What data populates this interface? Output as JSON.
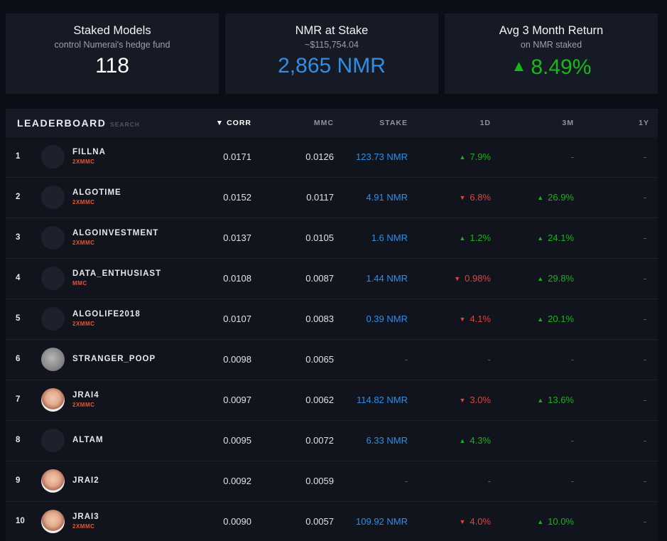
{
  "cards": [
    {
      "title": "Staked Models",
      "subtitle": "control Numerai's hedge fund",
      "value": "118",
      "color": "#ffffff"
    },
    {
      "title": "NMR at Stake",
      "subtitle": "~$115,754.04",
      "value": "2,865 NMR",
      "color": "#2f8ee8"
    },
    {
      "title": "Avg 3 Month Return",
      "subtitle": "on NMR staked",
      "value": "8.49%",
      "arrow": "▲",
      "color": "#18b818"
    }
  ],
  "leaderboard": {
    "title": "LEADERBOARD",
    "search_placeholder": "SEARCH",
    "columns": {
      "corr": "▼ CORR",
      "mmc": "MMC",
      "stake": "STAKE",
      "d1": "1D",
      "m3": "3M",
      "y1": "1Y"
    },
    "rows": [
      {
        "rank": "1",
        "name": "FILLNA",
        "tag": "2XMMC",
        "avatar": "dark",
        "corr": "0.0171",
        "mmc": "0.0126",
        "stake": "123.73 NMR",
        "d1": "7.9%",
        "d1_dir": "up",
        "m3": "-",
        "m3_dir": "none",
        "y1": "-"
      },
      {
        "rank": "2",
        "name": "ALGOTIME",
        "tag": "2XMMC",
        "avatar": "dark",
        "corr": "0.0152",
        "mmc": "0.0117",
        "stake": "4.91 NMR",
        "d1": "6.8%",
        "d1_dir": "down",
        "m3": "26.9%",
        "m3_dir": "up",
        "y1": "-"
      },
      {
        "rank": "3",
        "name": "ALGOINVESTMENT",
        "tag": "2XMMC",
        "avatar": "dark",
        "corr": "0.0137",
        "mmc": "0.0105",
        "stake": "1.6 NMR",
        "d1": "1.2%",
        "d1_dir": "up",
        "m3": "24.1%",
        "m3_dir": "up",
        "y1": "-"
      },
      {
        "rank": "4",
        "name": "DATA_ENTHUSIAST",
        "tag": "MMC",
        "avatar": "dark",
        "corr": "0.0108",
        "mmc": "0.0087",
        "stake": "1.44 NMR",
        "d1": "0.98%",
        "d1_dir": "down",
        "m3": "29.8%",
        "m3_dir": "up",
        "y1": "-"
      },
      {
        "rank": "5",
        "name": "ALGOLIFE2018",
        "tag": "2XMMC",
        "avatar": "dark",
        "corr": "0.0107",
        "mmc": "0.0083",
        "stake": "0.39 NMR",
        "d1": "4.1%",
        "d1_dir": "down",
        "m3": "20.1%",
        "m3_dir": "up",
        "y1": "-"
      },
      {
        "rank": "6",
        "name": "STRANGER_POOP",
        "tag": "",
        "avatar": "gray",
        "corr": "0.0098",
        "mmc": "0.0065",
        "stake": "-",
        "d1": "-",
        "d1_dir": "none",
        "m3": "-",
        "m3_dir": "none",
        "y1": "-"
      },
      {
        "rank": "7",
        "name": "JRAI4",
        "tag": "2XMMC",
        "avatar": "photo",
        "corr": "0.0097",
        "mmc": "0.0062",
        "stake": "114.82 NMR",
        "d1": "3.0%",
        "d1_dir": "down",
        "m3": "13.6%",
        "m3_dir": "up",
        "y1": "-"
      },
      {
        "rank": "8",
        "name": "ALTAM",
        "tag": "",
        "avatar": "dark",
        "corr": "0.0095",
        "mmc": "0.0072",
        "stake": "6.33 NMR",
        "d1": "4.3%",
        "d1_dir": "up",
        "m3": "-",
        "m3_dir": "none",
        "y1": "-"
      },
      {
        "rank": "9",
        "name": "JRAI2",
        "tag": "",
        "avatar": "photo",
        "corr": "0.0092",
        "mmc": "0.0059",
        "stake": "-",
        "d1": "-",
        "d1_dir": "none",
        "m3": "-",
        "m3_dir": "none",
        "y1": "-"
      },
      {
        "rank": "10",
        "name": "JRAI3",
        "tag": "2XMMC",
        "avatar": "photo",
        "corr": "0.0090",
        "mmc": "0.0057",
        "stake": "109.92 NMR",
        "d1": "4.0%",
        "d1_dir": "down",
        "m3": "10.0%",
        "m3_dir": "up",
        "y1": "-"
      }
    ]
  },
  "icons": {
    "up": "triangle-up-icon",
    "down": "triangle-down-icon"
  }
}
